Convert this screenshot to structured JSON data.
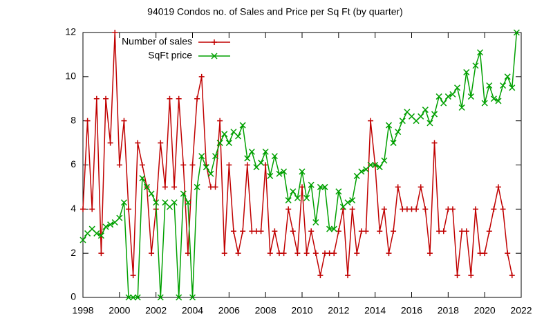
{
  "chart_data": {
    "type": "line",
    "title": "94019 Condos no. of Sales and Price per Sq Ft (by quarter)",
    "x": [
      1998,
      1998.25,
      1998.5,
      1998.75,
      1999,
      1999.25,
      1999.5,
      1999.75,
      2000,
      2000.25,
      2000.5,
      2000.75,
      2001,
      2001.25,
      2001.5,
      2001.75,
      2002,
      2002.25,
      2002.5,
      2002.75,
      2003,
      2003.25,
      2003.5,
      2003.75,
      2004,
      2004.25,
      2004.5,
      2004.75,
      2005,
      2005.25,
      2005.5,
      2005.75,
      2006,
      2006.25,
      2006.5,
      2006.75,
      2007,
      2007.25,
      2007.5,
      2007.75,
      2008,
      2008.25,
      2008.5,
      2008.75,
      2009,
      2009.25,
      2009.5,
      2009.75,
      2010,
      2010.25,
      2010.5,
      2010.75,
      2011,
      2011.25,
      2011.5,
      2011.75,
      2012,
      2012.25,
      2012.5,
      2012.75,
      2013,
      2013.25,
      2013.5,
      2013.75,
      2014,
      2014.25,
      2014.5,
      2014.75,
      2015,
      2015.25,
      2015.5,
      2015.75,
      2016,
      2016.25,
      2016.5,
      2016.75,
      2017,
      2017.25,
      2017.5,
      2017.75,
      2018,
      2018.25,
      2018.5,
      2018.75,
      2019,
      2019.25,
      2019.5,
      2019.75,
      2020,
      2020.25,
      2020.5,
      2020.75,
      2021,
      2021.25,
      2021.5,
      2021.75
    ],
    "series": [
      {
        "name": "Number of sales",
        "color": "#c00000",
        "marker": "plus",
        "values": [
          4,
          8,
          4,
          9,
          2,
          9,
          7,
          12,
          6,
          8,
          4,
          1,
          7,
          6,
          5,
          2,
          4,
          7,
          5,
          9,
          5,
          9,
          6,
          2,
          6,
          9,
          10,
          6,
          5,
          5,
          8,
          2,
          6,
          3,
          2,
          3,
          6,
          3,
          3,
          3,
          6,
          2,
          3,
          2,
          2,
          4,
          3,
          2,
          5,
          2,
          3,
          2,
          1,
          2,
          2,
          2,
          3,
          4,
          1,
          4,
          2,
          3,
          3,
          8,
          6,
          3,
          4,
          2,
          3,
          5,
          4,
          4,
          4,
          4,
          5,
          4,
          2,
          7,
          3,
          3,
          4,
          4,
          1,
          3,
          3,
          1,
          4,
          2,
          2,
          3,
          4,
          5,
          4,
          2,
          1,
          null
        ]
      },
      {
        "name": "SqFt price",
        "color": "#00a000",
        "marker": "cross",
        "values": [
          2.6,
          2.9,
          3.1,
          2.9,
          2.8,
          3.2,
          3.3,
          3.4,
          3.6,
          4.3,
          0,
          0,
          0,
          5.4,
          5.0,
          4.7,
          4.3,
          0,
          4.3,
          4.1,
          4.3,
          0,
          4.7,
          4.3,
          0,
          5.0,
          6.4,
          5.9,
          5.6,
          6.4,
          7.0,
          7.4,
          7.0,
          7.5,
          7.3,
          7.8,
          6.3,
          6.6,
          5.9,
          6.1,
          6.6,
          5.5,
          6.4,
          5.6,
          5.7,
          4.4,
          4.8,
          4.5,
          5.7,
          4.5,
          5.1,
          3.4,
          5.0,
          5.0,
          3.1,
          3.1,
          4.8,
          4.1,
          4.3,
          4.4,
          5.5,
          5.7,
          5.8,
          6.0,
          6.0,
          5.9,
          6.2,
          7.8,
          7.0,
          7.5,
          8.0,
          8.4,
          8.2,
          8.0,
          8.2,
          8.5,
          7.9,
          8.3,
          9.1,
          8.8,
          9.1,
          9.2,
          9.5,
          8.6,
          10.2,
          9.1,
          10.5,
          11.1,
          8.8,
          9.6,
          9.0,
          8.9,
          9.6,
          10.0,
          9.5,
          12.0
        ]
      }
    ],
    "xlim": [
      1998,
      2022
    ],
    "xticks": [
      1998,
      2000,
      2002,
      2004,
      2006,
      2008,
      2010,
      2012,
      2014,
      2016,
      2018,
      2020,
      2022
    ],
    "ylim": [
      0,
      12
    ],
    "yticks": [
      0,
      2,
      4,
      6,
      8,
      10,
      12
    ],
    "grid": false,
    "legend": "top-left"
  }
}
